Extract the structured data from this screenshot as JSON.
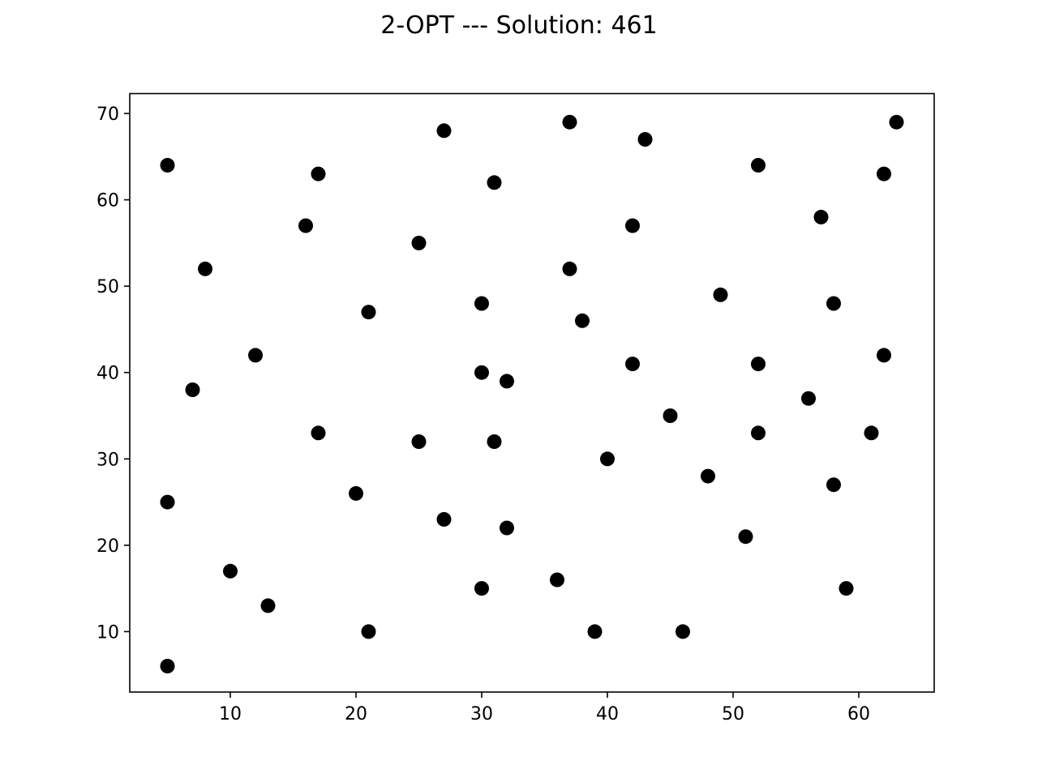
{
  "chart_data": {
    "type": "scatter",
    "title": "2-OPT --- Solution: 461",
    "xlabel": "",
    "ylabel": "",
    "xlim": [
      2,
      66
    ],
    "ylim": [
      3,
      72.3
    ],
    "xticks": [
      10,
      20,
      30,
      40,
      50,
      60
    ],
    "yticks": [
      10,
      20,
      30,
      40,
      50,
      60,
      70
    ],
    "grid": false,
    "marker_color": "#000000",
    "points": [
      [
        5,
        64
      ],
      [
        17,
        63
      ],
      [
        27,
        68
      ],
      [
        31,
        62
      ],
      [
        37,
        69
      ],
      [
        43,
        67
      ],
      [
        52,
        64
      ],
      [
        62,
        63
      ],
      [
        63,
        69
      ],
      [
        16,
        57
      ],
      [
        25,
        55
      ],
      [
        42,
        57
      ],
      [
        57,
        58
      ],
      [
        8,
        52
      ],
      [
        37,
        52
      ],
      [
        49,
        49
      ],
      [
        58,
        48
      ],
      [
        21,
        47
      ],
      [
        30,
        48
      ],
      [
        38,
        46
      ],
      [
        12,
        42
      ],
      [
        7,
        38
      ],
      [
        30,
        40
      ],
      [
        32,
        39
      ],
      [
        42,
        41
      ],
      [
        52,
        41
      ],
      [
        62,
        42
      ],
      [
        56,
        37
      ],
      [
        45,
        35
      ],
      [
        17,
        33
      ],
      [
        25,
        32
      ],
      [
        31,
        32
      ],
      [
        52,
        33
      ],
      [
        61,
        33
      ],
      [
        40,
        30
      ],
      [
        48,
        28
      ],
      [
        58,
        27
      ],
      [
        20,
        26
      ],
      [
        5,
        25
      ],
      [
        27,
        23
      ],
      [
        32,
        22
      ],
      [
        51,
        21
      ],
      [
        10,
        17
      ],
      [
        36,
        16
      ],
      [
        30,
        15
      ],
      [
        59,
        15
      ],
      [
        13,
        13
      ],
      [
        21,
        10
      ],
      [
        39,
        10
      ],
      [
        46,
        10
      ],
      [
        5,
        6
      ]
    ]
  }
}
